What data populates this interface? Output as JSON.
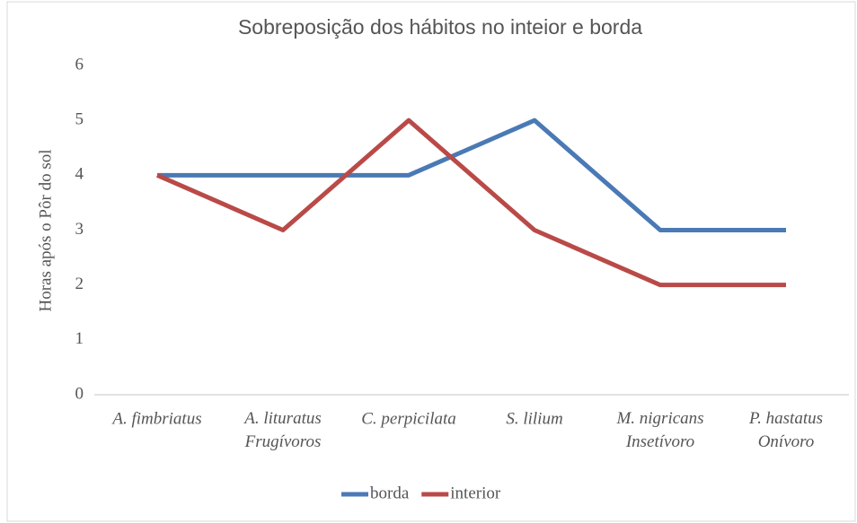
{
  "chart_data": {
    "type": "line",
    "title": "Sobreposição dos hábitos no inteior e borda",
    "y_label": "Horas após o Pôr do sol",
    "categories": [
      "A. fimbriatus",
      "A. lituratus\nFrugívoros",
      "C. perpicilata",
      "S. lilium",
      "M. nigricans\nInsetívoro",
      "P. hastatus\nOnívoro"
    ],
    "series": [
      {
        "name": "borda",
        "color": "#4a7ab5",
        "values": [
          4,
          4,
          4,
          5,
          3,
          3
        ]
      },
      {
        "name": "interior",
        "color": "#b94a48",
        "values": [
          4,
          3,
          5,
          3,
          2,
          2
        ]
      }
    ],
    "ylim": [
      0,
      6
    ],
    "yticks": [
      0,
      1,
      2,
      3,
      4,
      5,
      6
    ],
    "grid": false,
    "legend": "bottom"
  }
}
